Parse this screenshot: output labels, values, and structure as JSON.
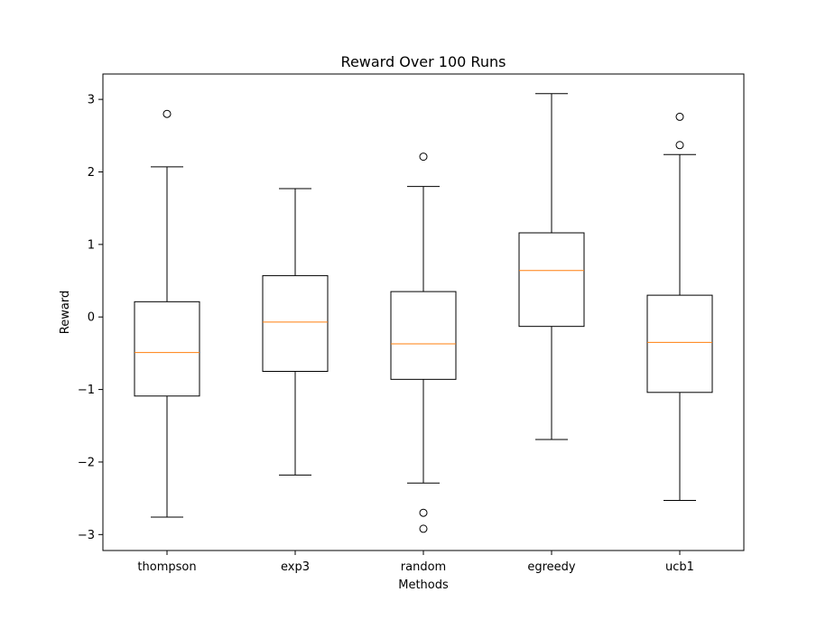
{
  "chart_data": {
    "type": "box",
    "title": "Reward Over 100 Runs",
    "xlabel": "Methods",
    "ylabel": "Reward",
    "ylim": [
      -3.22,
      3.35
    ],
    "yticks": [
      -3,
      -2,
      -1,
      0,
      1,
      2,
      3
    ],
    "yticklabels": [
      "−3",
      "−2",
      "−1",
      "0",
      "1",
      "2",
      "3"
    ],
    "grid": false,
    "colors": {
      "box": "#000000",
      "median": "#ff7f0e",
      "outlier": "#000000"
    },
    "categories": [
      "thompson",
      "exp3",
      "random",
      "egreedy",
      "ucb1"
    ],
    "boxes": [
      {
        "category": "thompson",
        "whisker_low": -2.76,
        "q1": -1.09,
        "median": -0.49,
        "q3": 0.21,
        "whisker_high": 2.07,
        "outliers": [
          2.8
        ]
      },
      {
        "category": "exp3",
        "whisker_low": -2.18,
        "q1": -0.75,
        "median": -0.07,
        "q3": 0.57,
        "whisker_high": 1.77,
        "outliers": []
      },
      {
        "category": "random",
        "whisker_low": -2.29,
        "q1": -0.86,
        "median": -0.37,
        "q3": 0.35,
        "whisker_high": 1.8,
        "outliers": [
          2.21,
          -2.7,
          -2.92
        ]
      },
      {
        "category": "egreedy",
        "whisker_low": -1.69,
        "q1": -0.13,
        "median": 0.64,
        "q3": 1.16,
        "whisker_high": 3.08,
        "outliers": []
      },
      {
        "category": "ucb1",
        "whisker_low": -2.53,
        "q1": -1.04,
        "median": -0.35,
        "q3": 0.3,
        "whisker_high": 2.24,
        "outliers": [
          2.76,
          2.37
        ]
      }
    ]
  }
}
